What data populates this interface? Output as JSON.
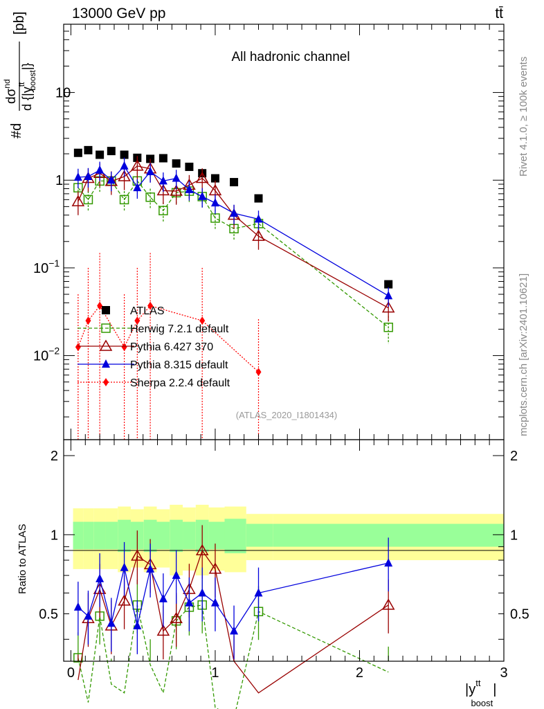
{
  "header": {
    "energy_label": "13000 GeV pp",
    "process_label": "tt̄"
  },
  "side_labels": {
    "rivet": "Rivet 4.1.0, ≥ 100k events",
    "mcplots": "mcplots.cern.ch [arXiv:2401.10621]"
  },
  "axis_text": {
    "ylabel_main": "#d dσ^nd / d {|y^tt_boost|} [pb]",
    "ylabel_prefix": "#d",
    "ylabel_num": "dσ",
    "ylabel_num_sup": "nd",
    "ylabel_den": "d {|y",
    "ylabel_den_sup": "tt",
    "ylabel_den_sub": "boost",
    "ylabel_den_end": "|}",
    "ylabel_unit": "[pb]",
    "xlabel_base": "|y",
    "xlabel_sup": "tt",
    "xlabel_sub": "boost",
    "xlabel_end": "|",
    "ratio_ylabel": "Ratio to ATLAS"
  },
  "ticks": {
    "main_y": [
      {
        "label": "10",
        "sup": "",
        "value": 10
      },
      {
        "label": "1",
        "sup": "",
        "value": 1
      },
      {
        "label": "10",
        "sup": "−1",
        "value": 0.1
      },
      {
        "label": "10",
        "sup": "−2",
        "value": 0.01
      }
    ],
    "ratio_y": [
      {
        "label": "2",
        "value": 2
      },
      {
        "label": "1",
        "value": 1
      },
      {
        "label": "0.5",
        "value": 0.5
      }
    ],
    "x": [
      {
        "label": "0",
        "value": 0
      },
      {
        "label": "1",
        "value": 1
      },
      {
        "label": "2",
        "value": 2
      },
      {
        "label": "3",
        "value": 3
      }
    ]
  },
  "chart_data": {
    "type": "scatter",
    "title": "All hadronic channel",
    "analysis_id": "(ATLAS_2020_I1801434)",
    "xlabel": "|y^tt_boost|",
    "ylabel": "#d dσ^nd / d {|y^tt_boost|} [pb]",
    "xlim": [
      -0.05,
      3.0
    ],
    "ylim": [
      0.0011,
      60
    ],
    "yscale": "log",
    "ratio_ylim": [
      0.33,
      2.3
    ],
    "ratio_yscale": "log",
    "x": [
      0.05,
      0.12,
      0.2,
      0.28,
      0.37,
      0.46,
      0.55,
      0.64,
      0.73,
      0.82,
      0.91,
      1.0,
      1.13,
      1.3,
      2.2
    ],
    "series": [
      {
        "name": "ATLAS",
        "color": "#000000",
        "values": [
          2.05,
          2.2,
          1.95,
          2.15,
          1.95,
          1.8,
          1.75,
          1.78,
          1.55,
          1.42,
          1.2,
          1.05,
          0.95,
          0.62,
          0.065
        ]
      },
      {
        "name": "Herwig 7.2.1 default",
        "color": "#339900",
        "values": [
          0.82,
          0.6,
          0.98,
          0.98,
          0.6,
          0.98,
          0.64,
          0.45,
          0.72,
          0.75,
          0.65,
          0.37,
          0.28,
          0.32,
          0.021
        ],
        "rel_err": [
          0.25,
          0.25,
          0.25,
          0.25,
          0.25,
          0.25,
          0.25,
          0.25,
          0.25,
          0.25,
          0.25,
          0.25,
          0.25,
          0.25,
          0.35
        ]
      },
      {
        "name": "Pythia 6.427 370",
        "color": "#990000",
        "values": [
          0.57,
          1.05,
          1.2,
          0.97,
          1.1,
          1.45,
          1.35,
          0.76,
          0.75,
          0.88,
          1.05,
          0.76,
          0.4,
          0.23,
          0.035
        ],
        "rel_err": [
          0.3,
          0.3,
          0.3,
          0.3,
          0.3,
          0.3,
          0.3,
          0.3,
          0.3,
          0.3,
          0.3,
          0.3,
          0.3,
          0.3,
          0.3
        ]
      },
      {
        "name": "Pythia 8.315 default",
        "color": "#0000dd",
        "values": [
          1.08,
          1.1,
          1.3,
          1.0,
          1.45,
          0.82,
          1.25,
          0.98,
          1.05,
          0.78,
          0.65,
          0.55,
          0.42,
          0.36,
          0.048
        ],
        "rel_err": [
          0.25,
          0.25,
          0.25,
          0.25,
          0.25,
          0.25,
          0.25,
          0.25,
          0.25,
          0.25,
          0.25,
          0.25,
          0.25,
          0.25,
          0.25
        ]
      },
      {
        "name": "Sherpa 2.2.4 default",
        "color": "#ff0000",
        "values": [
          0.0125,
          0.025,
          0.037,
          null,
          0.0125,
          0.025,
          0.037,
          null,
          null,
          null,
          0.025,
          null,
          null,
          0.0065,
          null
        ]
      }
    ],
    "ratio": {
      "ylabel": "Ratio to ATLAS",
      "band_inner": [
        0.12,
        0.12,
        0.12,
        0.12,
        0.14,
        0.12,
        0.14,
        0.12,
        0.14,
        0.12,
        0.14,
        0.12,
        0.15,
        0.1,
        0.1
      ],
      "band_outer": [
        0.26,
        0.26,
        0.26,
        0.26,
        0.28,
        0.25,
        0.28,
        0.25,
        0.3,
        0.27,
        0.3,
        0.27,
        0.28,
        0.2,
        0.2
      ],
      "series": [
        {
          "name": "Herwig 7.2.1 default",
          "values": [
            0.34,
            0.23,
            0.49,
            0.27,
            0.25,
            0.54,
            0.32,
            0.25,
            0.47,
            0.53,
            0.54,
            0.22,
            0.2,
            0.51,
            0.3
          ]
        },
        {
          "name": "Pythia 6.427 370",
          "values": [
            0.28,
            0.48,
            0.62,
            0.45,
            0.56,
            0.83,
            0.77,
            0.43,
            0.48,
            0.62,
            0.87,
            0.74,
            0.33,
            0.25,
            0.54
          ]
        },
        {
          "name": "Pythia 8.315 default",
          "values": [
            0.53,
            0.49,
            0.68,
            0.46,
            0.75,
            0.45,
            0.74,
            0.57,
            0.7,
            0.55,
            0.6,
            0.55,
            0.43,
            0.6,
            0.78
          ]
        }
      ]
    }
  }
}
